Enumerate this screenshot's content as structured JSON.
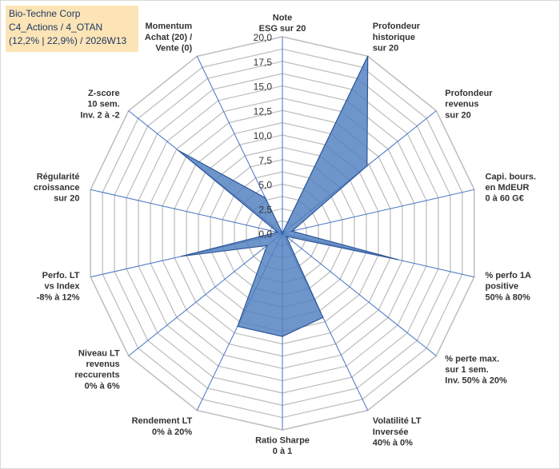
{
  "title_box": {
    "line1": "Bio-Techne Corp",
    "line2": "C4_Actions / 4_OTAN",
    "line3": "(12,2% | 22,9%) / 2026W13"
  },
  "colors": {
    "fill": "#4f7fbf",
    "stroke": "#2e5597",
    "grid": "#c0c0c0",
    "spoke": "#4472c4",
    "title_bg": "#fce4b6"
  },
  "chart_data": {
    "type": "radar",
    "rmin": 0,
    "rmax": 20,
    "tick_labels": [
      "0,0",
      "2,5",
      "5,0",
      "7,5",
      "10,0",
      "12,5",
      "15,0",
      "17,5",
      "20,0"
    ],
    "axes": [
      {
        "label": [
          "Note",
          "ESG sur 20"
        ],
        "value": 0
      },
      {
        "label": [
          "Profondeur",
          "historique",
          "sur 20"
        ],
        "value": 20
      },
      {
        "label": [
          "Profondeur",
          "revenus",
          "sur 20"
        ],
        "value": 11
      },
      {
        "label": [
          "Capi. bours.",
          "en MdEUR",
          "0 à 60 G€"
        ],
        "value": 1
      },
      {
        "label": [
          "% perfo 1A",
          "positive",
          "50% à 80%"
        ],
        "value": 12
      },
      {
        "label": [
          "% perte max.",
          "sur 1 sem.",
          "Inv. 50% à 20%"
        ],
        "value": 0.5
      },
      {
        "label": [
          "Volatilité LT",
          "Inversée",
          "40% à 0%"
        ],
        "value": 9.5
      },
      {
        "label": [
          "Ratio Sharpe",
          "0 à 1"
        ],
        "value": 10.5
      },
      {
        "label": [
          "Rendement LT",
          "0% à 20%"
        ],
        "value": 10.5
      },
      {
        "label": [
          "Niveau LT",
          "revenus",
          "reccurents",
          "0% à 6%"
        ],
        "value": 2
      },
      {
        "label": [
          "Perfo. LT",
          "vs Index",
          "-8% à 12%"
        ],
        "value": 10.5
      },
      {
        "label": [
          "Régularité",
          "croissance",
          "sur 20"
        ],
        "value": 0.5
      },
      {
        "label": [
          "Z-score",
          "10 sem.",
          "Inv. 2 à -2"
        ],
        "value": 13.5
      },
      {
        "label": [
          "Momentum",
          "Achat (20) /",
          "Vente (0)"
        ],
        "value": 4
      }
    ]
  }
}
